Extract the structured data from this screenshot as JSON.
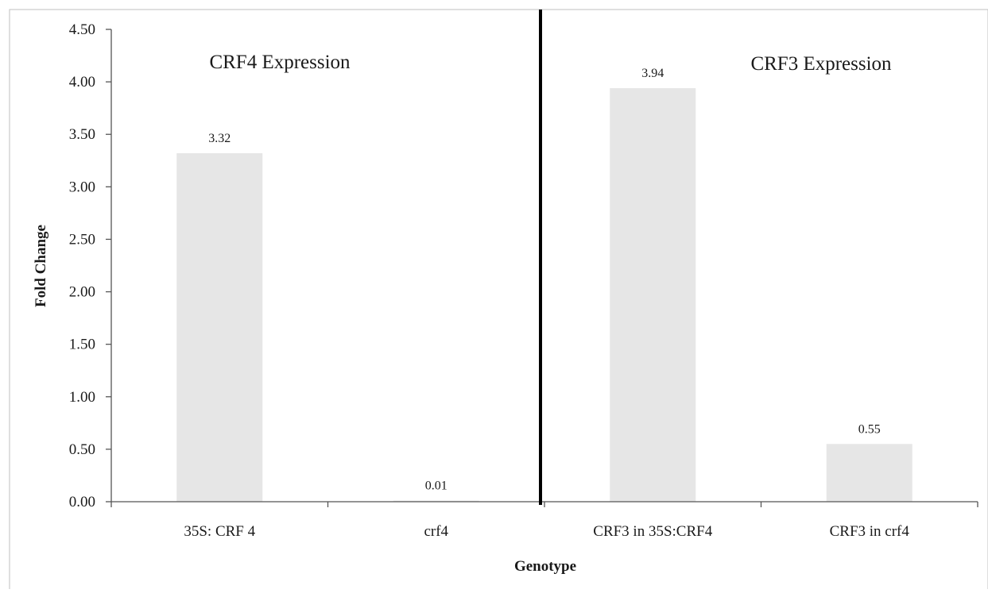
{
  "chart_data": {
    "type": "bar",
    "categories": [
      "35S: CRF 4",
      "crf4",
      "CRF3 in 35S:CRF4",
      "CRF3 in crf4"
    ],
    "values": [
      3.32,
      0.01,
      3.94,
      0.55
    ],
    "value_labels": [
      "3.32",
      "0.01",
      "3.94",
      "0.55"
    ],
    "xlabel": "Genotype",
    "ylabel": "Fold Change",
    "ylim": [
      0,
      4.5
    ],
    "yticks": [
      "0.00",
      "0.50",
      "1.00",
      "1.50",
      "2.00",
      "2.50",
      "3.00",
      "3.50",
      "4.00",
      "4.50"
    ],
    "annotations": [
      "CRF4 Expression",
      "CRF3 Expression"
    ],
    "grid": false,
    "legend": "none",
    "bar_color": "#e6e6e6",
    "divider_color": "#000000"
  }
}
